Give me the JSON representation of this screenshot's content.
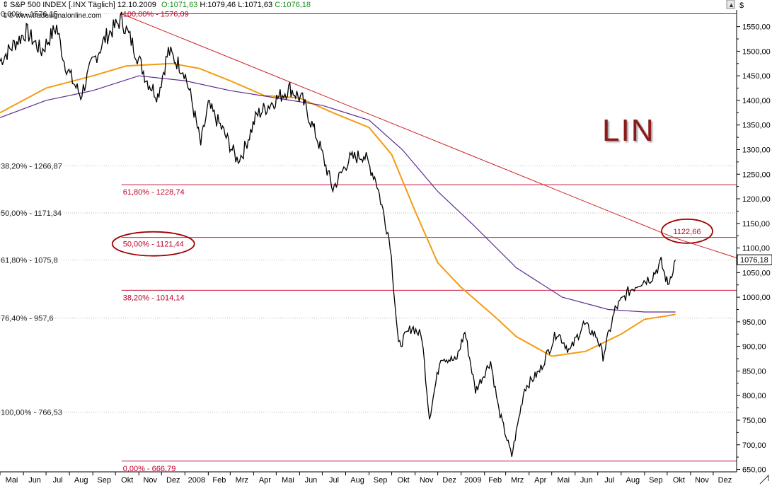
{
  "header": {
    "symbol": "S&P 500 INDEX [.INX  Täglich] 12.10.2009",
    "open": "O:1071,63",
    "high": "H:1079,46",
    "low": "L:1071,63",
    "close": "C:1076,18",
    "source": "© www.tradesignalonline.com",
    "currency": "$",
    "last_price_tag": "1076,18"
  },
  "annotation": {
    "text": "LIN",
    "color": "#8b1a1a"
  },
  "colors": {
    "price": "#000000",
    "ma_orange": "#f39c12",
    "ma_purple": "#5b2c8f",
    "fib": "#c0002a",
    "grid": "#b8b8b8",
    "trendline": "#d12020"
  },
  "chart_data": {
    "type": "line",
    "title": "S&P 500 INDEX [.INX  Täglich] 12.10.2009",
    "y_axis": {
      "position": "right",
      "ticks": [
        "1550,00",
        "1500,00",
        "1450,00",
        "1400,00",
        "1350,00",
        "1300,00",
        "1250,00",
        "1200,00",
        "1150,00",
        "1100,00",
        "1050,00",
        "1000,00",
        "950,00",
        "900,00",
        "850,00",
        "800,00",
        "750,00",
        "700,00",
        "650,00"
      ],
      "range": [
        640,
        1590
      ]
    },
    "x_axis": {
      "labels": [
        "Mai",
        "Jun",
        "Jul",
        "Aug",
        "Sep",
        "Okt",
        "Nov",
        "Dez",
        "2008",
        "Feb",
        "Mrz",
        "Apr",
        "Mai",
        "Jun",
        "Jul",
        "Aug",
        "Sep",
        "Okt",
        "Nov",
        "Dez",
        "2009",
        "Feb",
        "Mrz",
        "Apr",
        "Mai",
        "Jun",
        "Jul",
        "Aug",
        "Sep",
        "Okt",
        "Nov",
        "Dez"
      ],
      "range": [
        "2007-05-01",
        "2010-01-01"
      ]
    },
    "series": [
      {
        "type": "price",
        "points": [
          [
            "2007-05-01",
            1480
          ],
          [
            "2007-05-20",
            1515
          ],
          [
            "2007-06-05",
            1540
          ],
          [
            "2007-06-25",
            1500
          ],
          [
            "2007-07-15",
            1550
          ],
          [
            "2007-07-25",
            1480
          ],
          [
            "2007-08-05",
            1440
          ],
          [
            "2007-08-16",
            1410
          ],
          [
            "2007-08-31",
            1475
          ],
          [
            "2007-09-19",
            1530
          ],
          [
            "2007-10-09",
            1565
          ],
          [
            "2007-10-25",
            1510
          ],
          [
            "2007-11-12",
            1440
          ],
          [
            "2007-11-26",
            1410
          ],
          [
            "2007-12-10",
            1500
          ],
          [
            "2007-12-31",
            1460
          ],
          [
            "2008-01-10",
            1400
          ],
          [
            "2008-01-22",
            1310
          ],
          [
            "2008-02-01",
            1390
          ],
          [
            "2008-02-20",
            1340
          ],
          [
            "2008-03-10",
            1280
          ],
          [
            "2008-03-17",
            1290
          ],
          [
            "2008-04-05",
            1370
          ],
          [
            "2008-04-25",
            1395
          ],
          [
            "2008-05-19",
            1425
          ],
          [
            "2008-06-05",
            1400
          ],
          [
            "2008-06-25",
            1320
          ],
          [
            "2008-07-15",
            1220
          ],
          [
            "2008-08-05",
            1280
          ],
          [
            "2008-08-25",
            1290
          ],
          [
            "2008-09-10",
            1240
          ],
          [
            "2008-09-29",
            1110
          ],
          [
            "2008-10-10",
            900
          ],
          [
            "2008-10-28",
            940
          ],
          [
            "2008-11-10",
            920
          ],
          [
            "2008-11-20",
            755
          ],
          [
            "2008-12-05",
            880
          ],
          [
            "2008-12-25",
            870
          ],
          [
            "2009-01-06",
            930
          ],
          [
            "2009-01-20",
            810
          ],
          [
            "2009-02-09",
            870
          ],
          [
            "2009-02-20",
            770
          ],
          [
            "2009-03-09",
            677
          ],
          [
            "2009-03-26",
            815
          ],
          [
            "2009-04-15",
            850
          ],
          [
            "2009-05-08",
            930
          ],
          [
            "2009-05-25",
            890
          ],
          [
            "2009-06-12",
            945
          ],
          [
            "2009-06-30",
            920
          ],
          [
            "2009-07-08",
            880
          ],
          [
            "2009-07-24",
            975
          ],
          [
            "2009-08-10",
            1010
          ],
          [
            "2009-08-25",
            1030
          ],
          [
            "2009-09-10",
            1040
          ],
          [
            "2009-09-23",
            1070
          ],
          [
            "2009-10-02",
            1025
          ],
          [
            "2009-10-12",
            1076.18
          ]
        ]
      },
      {
        "type": "moving_average",
        "color": "orange",
        "points": [
          [
            "2007-05-01",
            1375
          ],
          [
            "2007-07-01",
            1425
          ],
          [
            "2007-09-01",
            1450
          ],
          [
            "2007-10-15",
            1470
          ],
          [
            "2007-12-15",
            1475
          ],
          [
            "2008-01-20",
            1465
          ],
          [
            "2008-03-01",
            1440
          ],
          [
            "2008-04-15",
            1410
          ],
          [
            "2008-06-01",
            1405
          ],
          [
            "2008-07-15",
            1375
          ],
          [
            "2008-09-01",
            1345
          ],
          [
            "2008-10-01",
            1290
          ],
          [
            "2008-11-01",
            1175
          ],
          [
            "2008-12-01",
            1070
          ],
          [
            "2009-01-01",
            1020
          ],
          [
            "2009-02-15",
            960
          ],
          [
            "2009-03-15",
            920
          ],
          [
            "2009-05-01",
            880
          ],
          [
            "2009-06-15",
            890
          ],
          [
            "2009-08-01",
            925
          ],
          [
            "2009-09-01",
            955
          ],
          [
            "2009-10-12",
            965
          ]
        ]
      },
      {
        "type": "moving_average",
        "color": "purple",
        "points": [
          [
            "2007-05-01",
            1365
          ],
          [
            "2007-07-01",
            1400
          ],
          [
            "2007-09-01",
            1420
          ],
          [
            "2007-11-01",
            1450
          ],
          [
            "2008-01-01",
            1440
          ],
          [
            "2008-03-01",
            1420
          ],
          [
            "2008-05-01",
            1405
          ],
          [
            "2008-07-01",
            1390
          ],
          [
            "2008-09-01",
            1360
          ],
          [
            "2008-10-15",
            1300
          ],
          [
            "2008-12-01",
            1215
          ],
          [
            "2009-01-15",
            1150
          ],
          [
            "2009-03-15",
            1060
          ],
          [
            "2009-05-15",
            1000
          ],
          [
            "2009-07-15",
            975
          ],
          [
            "2009-09-01",
            970
          ],
          [
            "2009-10-12",
            970
          ]
        ]
      },
      {
        "type": "trendline",
        "points": [
          [
            "2007-10-09",
            1576.09
          ],
          [
            "2009-10-12",
            1120.0
          ],
          [
            "2010-01-01",
            1080.0
          ]
        ]
      }
    ],
    "fibonacci": [
      {
        "label": "0,00% - 1576,15",
        "value": 1576.15,
        "side": "left"
      },
      {
        "label": "38,20% - 1266,87",
        "value": 1266.87,
        "side": "left"
      },
      {
        "label": "50,00% - 1171,34",
        "value": 1171.34,
        "side": "left"
      },
      {
        "label": "61,80% - 1075,8",
        "value": 1075.8,
        "side": "left"
      },
      {
        "label": "76,40% - 957,6",
        "value": 957.6,
        "side": "left"
      },
      {
        "label": "100,00% - 766,53",
        "value": 766.53,
        "side": "left"
      },
      {
        "label": "100,00% - 1576,09",
        "value": 1576.09,
        "side": "right"
      },
      {
        "label": "61,80% - 1228,74",
        "value": 1228.74,
        "side": "right"
      },
      {
        "label": "50,00% - 1121,44",
        "value": 1121.44,
        "side": "right",
        "circled": true
      },
      {
        "label": "38,20% - 1014,14",
        "value": 1014.14,
        "side": "right"
      },
      {
        "label": "0,00% - 666,79",
        "value": 666.79,
        "side": "right"
      }
    ],
    "callouts": [
      {
        "label": "1122,66",
        "value": 1122.66,
        "circled": true
      }
    ],
    "grid": true
  }
}
